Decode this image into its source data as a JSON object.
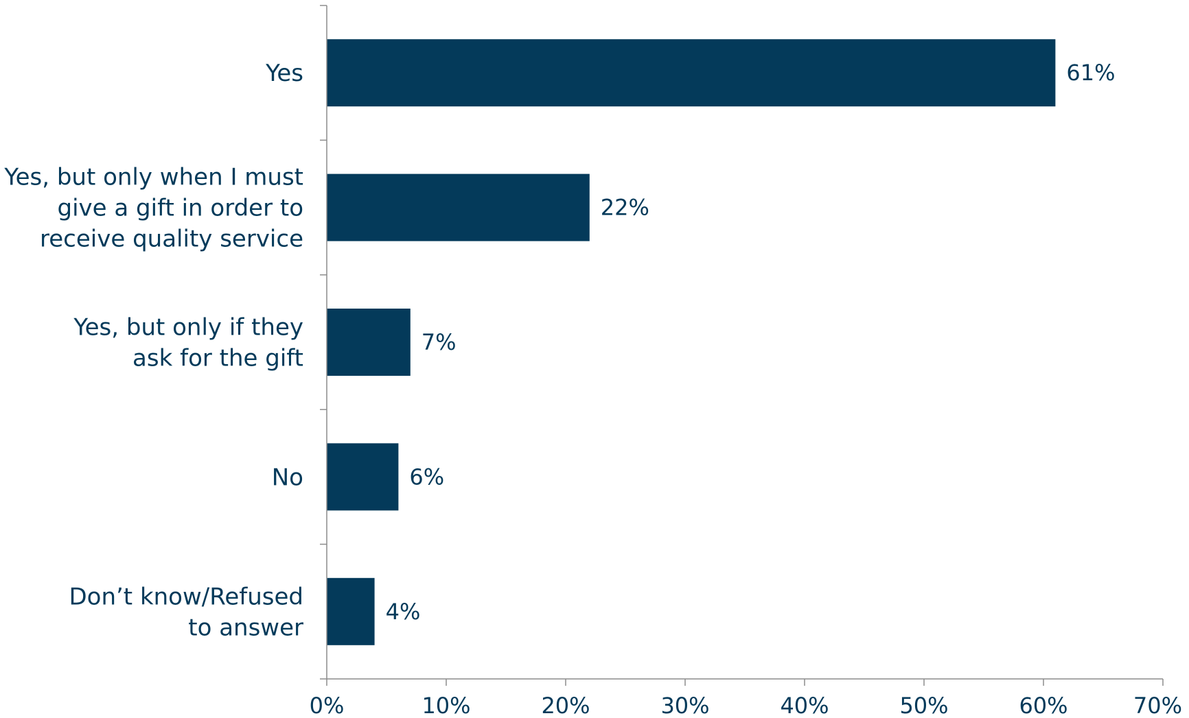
{
  "chart_data": {
    "type": "bar",
    "orientation": "horizontal",
    "categories": [
      [
        "Yes"
      ],
      [
        "Yes, but only when I must",
        "give a gift in order to",
        "receive quality service"
      ],
      [
        "Yes, but only if they",
        "ask for the gift"
      ],
      [
        "No"
      ],
      [
        "Don’t know/Refused",
        "to answer"
      ]
    ],
    "values": [
      61,
      22,
      7,
      6,
      4
    ],
    "value_labels": [
      "61%",
      "22%",
      "7%",
      "6%",
      "4%"
    ],
    "xlim": [
      0,
      70
    ],
    "xticks": [
      0,
      10,
      20,
      30,
      40,
      50,
      60,
      70
    ],
    "xtick_labels": [
      "0%",
      "10%",
      "20%",
      "30%",
      "40%",
      "50%",
      "60%",
      "70%"
    ],
    "grid": false,
    "legend": "none",
    "bar_color": "#043a5a",
    "text_color": "#043a5a",
    "axis_color": "#8c8c8c"
  }
}
